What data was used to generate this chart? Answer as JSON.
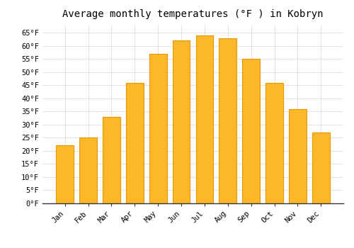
{
  "title": "Average monthly temperatures (°F ) in Kobryn",
  "months": [
    "Jan",
    "Feb",
    "Mar",
    "Apr",
    "May",
    "Jun",
    "Jul",
    "Aug",
    "Sep",
    "Oct",
    "Nov",
    "Dec"
  ],
  "values": [
    22,
    25,
    33,
    46,
    57,
    62,
    64,
    63,
    55,
    46,
    36,
    27
  ],
  "bar_color": "#FDB827",
  "bar_edge_color": "#E8960A",
  "background_color": "#FFFFFF",
  "grid_color": "#DDDDDD",
  "yticks": [
    0,
    5,
    10,
    15,
    20,
    25,
    30,
    35,
    40,
    45,
    50,
    55,
    60,
    65
  ],
  "ylim": [
    0,
    68
  ],
  "title_fontsize": 10,
  "tick_fontsize": 7.5,
  "font_family": "monospace",
  "bar_width": 0.75
}
